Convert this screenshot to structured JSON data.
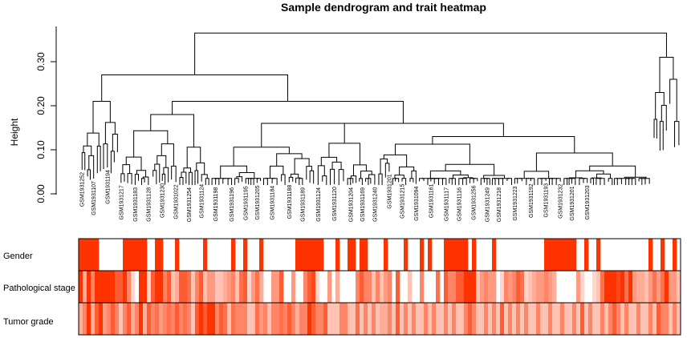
{
  "chart_data": [
    {
      "type": "dendrogram",
      "title": "Sample dendrogram and trait heatmap",
      "ylabel": "Height",
      "xlabel": "",
      "ylim": [
        0,
        0.37
      ],
      "yticks": [
        "0.00",
        "0.10",
        "0.20",
        "0.30"
      ],
      "ytick_values": [
        0.0,
        0.1,
        0.2,
        0.3
      ],
      "root_height": 0.365,
      "major_merges": [
        {
          "cluster": "left",
          "height": 0.27
        },
        {
          "cluster": "right",
          "height": 0.31
        }
      ],
      "leaf_labels_visible": [
        "GSM1931252",
        "GSM1931107",
        "GSM1931194",
        "GSM1931217",
        "GSM1931183",
        "GSM1931128",
        "GSM1931230",
        "GSM1931022",
        "GSM1931254",
        "GSM1931124",
        "GSM1931198",
        "GSM1931196",
        "GSM1931195",
        "GSM1931205",
        "GSM1931184",
        "GSM1931188",
        "GSM1931189",
        "GSM1931124",
        "GSM1931120",
        "GSM1931204",
        "GSM1931169",
        "GSM1931240",
        "GSM1931201",
        "GSM1931215",
        "GSM1931094",
        "GSM1931161",
        "GSM1931117",
        "GSM1931116",
        "GSM1931256",
        "GSM1931249",
        "GSM1931218",
        "GSM1931223",
        "GSM1931192",
        "GSM1931193",
        "GSM1931232",
        "GSM1931201",
        "GSM1931203"
      ]
    },
    {
      "type": "heatmap",
      "rows": [
        "Gender",
        "Pathological stage",
        "Tumor grade"
      ],
      "color_scale": {
        "low": "#ffffff",
        "high": "#ff3300"
      },
      "n_samples": 150,
      "values": [
        [
          1,
          1,
          1,
          1,
          1,
          0,
          0,
          0,
          0,
          0,
          0,
          1,
          1,
          1,
          1,
          1,
          1,
          0,
          0,
          1,
          1,
          0,
          0,
          0,
          1,
          0,
          0,
          0,
          0,
          0,
          0,
          1,
          0,
          0,
          0,
          0,
          0,
          0,
          1,
          0,
          0,
          1,
          0,
          0,
          0,
          1,
          0,
          0,
          0,
          0,
          0,
          0,
          0,
          0,
          1,
          1,
          1,
          1,
          1,
          1,
          1,
          0,
          0,
          0,
          1,
          0,
          0,
          1,
          1,
          0,
          1,
          1,
          0,
          0,
          0,
          0,
          1,
          0,
          0,
          0,
          0,
          1,
          0,
          0,
          0,
          1,
          0,
          1,
          0,
          0,
          0,
          1,
          1,
          1,
          1,
          1,
          1,
          0,
          1,
          0,
          0,
          0,
          0,
          1,
          0,
          0,
          0,
          0,
          0,
          0,
          0,
          0,
          0,
          0,
          0,
          0,
          1,
          1,
          1,
          1,
          1,
          1,
          1,
          1,
          0,
          0,
          1,
          0,
          0,
          1,
          0,
          0,
          0,
          0,
          0,
          0,
          0,
          0,
          0,
          0,
          0,
          0,
          1,
          0,
          0,
          1,
          0,
          0,
          1,
          0
        ],
        [
          1,
          0.4,
          1,
          0.6,
          1,
          1,
          1,
          1,
          1,
          0.8,
          0.8,
          1,
          0.6,
          0.2,
          0,
          1,
          1,
          0.2,
          0.8,
          1,
          1,
          0.6,
          0.8,
          0.3,
          0.4,
          0.8,
          0.8,
          0.7,
          0.3,
          0.6,
          0.8,
          0.3,
          0.5,
          0.5,
          0.3,
          0.3,
          0.4,
          0.5,
          0.6,
          0.3,
          0.7,
          0.8,
          0.2,
          0.5,
          0.7,
          0.4,
          0,
          0,
          0.5,
          0.5,
          0.8,
          0,
          0,
          0.5,
          0,
          0,
          0.6,
          0.8,
          0.9,
          0.2,
          0,
          0,
          0.5,
          0,
          0.4,
          0,
          0,
          0,
          0,
          0.6,
          0.8,
          0.6,
          0.6,
          0.3,
          0.6,
          0.3,
          0.5,
          0.6,
          0,
          0.8,
          0,
          0,
          0.3,
          0,
          0,
          0.6,
          0,
          0,
          0,
          0.7,
          0,
          0.8,
          0.6,
          0.6,
          0.8,
          0.8,
          1,
          1,
          1,
          0.3,
          0.5,
          0.6,
          0.5,
          0.5,
          0,
          0.2,
          0.6,
          0.5,
          0.6,
          0.8,
          0.7,
          0.2,
          0.3,
          0.4,
          0.5,
          0.5,
          0.6,
          0.5,
          0.4,
          0,
          0,
          0,
          0,
          0,
          0.5,
          0.2,
          0,
          0,
          0.2,
          0.3,
          0.7,
          1,
          1,
          1,
          0.9,
          1,
          0.7,
          1,
          0.5,
          0.4,
          0.4,
          0.3,
          0.5,
          0.7,
          0.5,
          0.7,
          1,
          0.5,
          0.5,
          0.3
        ],
        [
          0.4,
          0.6,
          1,
          0.4,
          0.8,
          1,
          0.5,
          0.6,
          0.8,
          0.6,
          0.3,
          0.6,
          0.8,
          0.4,
          0.6,
          1,
          0.4,
          0.8,
          0.6,
          0.7,
          0.5,
          0.6,
          0.7,
          0.6,
          0.8,
          0.6,
          0.7,
          0.6,
          0.3,
          0.8,
          1,
          0.8,
          1,
          1,
          0.6,
          0.8,
          0.7,
          0.3,
          0.7,
          0.6,
          0.6,
          0.6,
          0.3,
          0.3,
          0.7,
          0.5,
          0.6,
          0.3,
          0.6,
          0.6,
          0.7,
          0.6,
          0.8,
          0.6,
          0.4,
          0.6,
          0.6,
          1,
          0.8,
          0.6,
          0.6,
          0.8,
          0.3,
          0.3,
          0.3,
          0.6,
          0.6,
          0.3,
          0.3,
          0.7,
          0.3,
          0.6,
          0.3,
          0.6,
          0.3,
          0.4,
          0.4,
          0.6,
          0.3,
          0.8,
          0.3,
          0.6,
          0.3,
          0.6,
          0.3,
          0.3,
          0.6,
          0.3,
          0.6,
          0.3,
          0.3,
          0.6,
          0.3,
          0.6,
          0.3,
          0.3,
          0.6,
          0.8,
          0.6,
          0.3,
          0.3,
          0.6,
          0.3,
          0.6,
          0.3,
          0.8,
          0.3,
          0.6,
          0.3,
          0.6,
          0.3,
          0.6,
          0.3,
          0.3,
          0.6,
          0.3,
          0.3,
          0.6,
          0.3,
          0.3,
          0.6,
          0.3,
          0.3,
          0.6,
          0.3,
          0.8,
          0.3,
          0.6,
          0.3,
          0.3,
          0.6,
          0.3,
          0.6,
          0.8,
          0.6,
          0.3,
          0.6,
          0.3,
          0.3,
          0.6,
          0.3,
          0.3,
          0.6,
          0.3,
          0.8,
          0.6,
          0.6,
          0.3,
          0.6,
          0.3
        ]
      ]
    }
  ]
}
